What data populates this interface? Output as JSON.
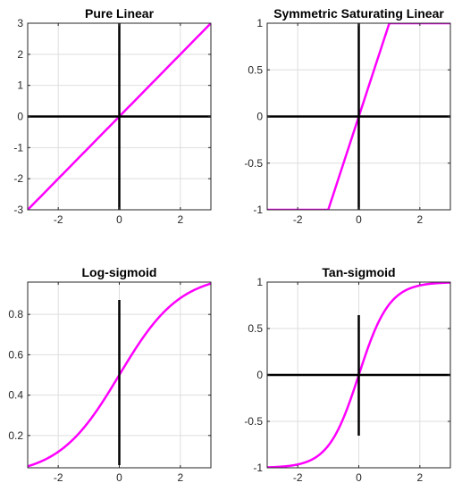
{
  "figure": {
    "curve_color": "#ff00ff",
    "axis_color": "#000000",
    "grid": true
  },
  "chart_data": [
    {
      "type": "line",
      "title": "Pure Linear",
      "xlim": [
        -3,
        3
      ],
      "ylim": [
        -3,
        3
      ],
      "xticks": [
        -2,
        0,
        2
      ],
      "yticks": [
        -3,
        -2,
        -1,
        0,
        1,
        2,
        3
      ],
      "xtick_labels": [
        "-2",
        "0",
        "2"
      ],
      "ytick_labels": [
        "-3",
        "-2",
        "-1",
        "0",
        "1",
        "2",
        "3"
      ],
      "function": "purelin",
      "series": [
        {
          "x": [
            -3,
            0,
            3
          ],
          "y": [
            -3,
            0,
            3
          ]
        }
      ]
    },
    {
      "type": "line",
      "title": "Symmetric Saturating Linear",
      "xlim": [
        -3,
        3
      ],
      "ylim": [
        -1,
        1
      ],
      "xticks": [
        -2,
        0,
        2
      ],
      "yticks": [
        -1,
        -0.5,
        0,
        0.5,
        1
      ],
      "xtick_labels": [
        "-2",
        "0",
        "2"
      ],
      "ytick_labels": [
        "-1",
        "-0.5",
        "0",
        "0.5",
        "1"
      ],
      "function": "satlins",
      "series": [
        {
          "x": [
            -3,
            -1,
            1,
            3
          ],
          "y": [
            -1,
            -1,
            1,
            1
          ]
        }
      ]
    },
    {
      "type": "line",
      "title": "Log-sigmoid",
      "xlim": [
        -3,
        3
      ],
      "ylim": [
        0.04,
        0.96
      ],
      "xticks": [
        -2,
        0,
        2
      ],
      "yticks": [
        0.2,
        0.4,
        0.6,
        0.8
      ],
      "xtick_labels": [
        "-2",
        "0",
        "2"
      ],
      "ytick_labels": [
        "0.2",
        "0.4",
        "0.6",
        "0.8"
      ],
      "function": "logsig",
      "series": [
        {
          "x": [
            -3,
            -2,
            -1,
            0,
            1,
            2,
            3
          ],
          "y": [
            0.047,
            0.119,
            0.269,
            0.5,
            0.731,
            0.881,
            0.953
          ]
        }
      ]
    },
    {
      "type": "line",
      "title": "Tan-sigmoid",
      "xlim": [
        -3,
        3
      ],
      "ylim": [
        -1,
        1
      ],
      "xticks": [
        -2,
        0,
        2
      ],
      "yticks": [
        -1,
        -0.5,
        0,
        0.5,
        1
      ],
      "xtick_labels": [
        "-2",
        "0",
        "2"
      ],
      "ytick_labels": [
        "-1",
        "-0.5",
        "0",
        "0.5",
        "1"
      ],
      "function": "tansig",
      "series": [
        {
          "x": [
            -3,
            -2,
            -1,
            0,
            1,
            2,
            3
          ],
          "y": [
            -0.995,
            -0.964,
            -0.762,
            0,
            0.762,
            0.964,
            0.995
          ]
        }
      ]
    }
  ]
}
